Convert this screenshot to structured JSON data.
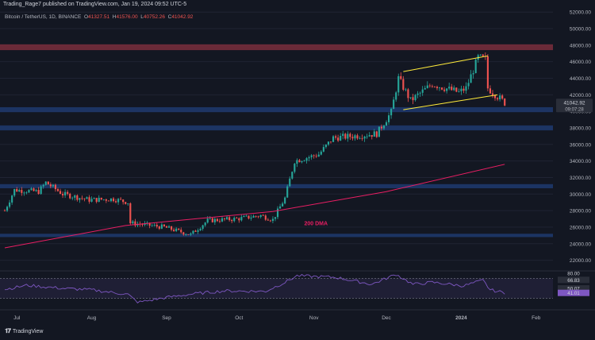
{
  "header": {
    "published_line": "Trading_Rage7 published on TradingView.com, Jan 19, 2024 09:52 UTC-5",
    "symbol": "Bitcoin / TetherUS, 1D, BINANCE",
    "ohlc": {
      "o_label": "O",
      "o": "41327.51",
      "h_label": "H",
      "h": "41576.00",
      "l_label": "L",
      "l": "40752.26",
      "c_label": "C",
      "c": "41042.92"
    }
  },
  "footer": {
    "brand": "TradingView"
  },
  "colors": {
    "background": "#131722",
    "up": "#26a69a",
    "down": "#ef5350",
    "support_zone": "#1e3a6e",
    "resistance_zone": "#7a2e3c",
    "channel": "#ffeb3b",
    "dma": "#e91e63",
    "rsi": "#7e57c2"
  },
  "chart_data": {
    "type": "candlestick",
    "price_axis": {
      "ticks": [
        "52000.00",
        "50000.00",
        "48000.00",
        "46000.00",
        "44000.00",
        "42000.00",
        "40000.00",
        "38000.00",
        "36000.00",
        "34000.00",
        "32000.00",
        "30000.00",
        "28000.00",
        "26000.00",
        "24000.00",
        "22000.00"
      ],
      "ylim": [
        21000,
        52500
      ]
    },
    "time_axis": {
      "ticks": [
        "Jul",
        "Aug",
        "Sep",
        "Oct",
        "Nov",
        "Dec",
        "2024",
        "Feb"
      ],
      "bold_tick": "2024"
    },
    "price_path": [
      [
        "2023-06-26",
        28000
      ],
      [
        "2023-06-30",
        30500
      ],
      [
        "2023-07-10",
        30300
      ],
      [
        "2023-07-13",
        31400
      ],
      [
        "2023-07-20",
        30000
      ],
      [
        "2023-07-31",
        29300
      ],
      [
        "2023-08-10",
        29400
      ],
      [
        "2023-08-16",
        29000
      ],
      [
        "2023-08-17",
        26500
      ],
      [
        "2023-08-31",
        26000
      ],
      [
        "2023-09-11",
        25100
      ],
      [
        "2023-09-18",
        26800
      ],
      [
        "2023-09-30",
        27000
      ],
      [
        "2023-10-10",
        27400
      ],
      [
        "2023-10-15",
        26900
      ],
      [
        "2023-10-20",
        29500
      ],
      [
        "2023-10-24",
        34000
      ],
      [
        "2023-11-03",
        34800
      ],
      [
        "2023-11-09",
        36800
      ],
      [
        "2023-11-17",
        37000
      ],
      [
        "2023-11-27",
        37300
      ],
      [
        "2023-12-03",
        39900
      ],
      [
        "2023-12-06",
        44000
      ],
      [
        "2023-12-11",
        41300
      ],
      [
        "2023-12-20",
        43300
      ],
      [
        "2023-12-31",
        42300
      ],
      [
        "2024-01-03",
        42800
      ],
      [
        "2024-01-08",
        46500
      ],
      [
        "2024-01-11",
        46300
      ],
      [
        "2024-01-12",
        42800
      ],
      [
        "2024-01-18",
        41300
      ],
      [
        "2024-01-19",
        41042
      ]
    ],
    "dma": {
      "label": "200 DMA",
      "points": [
        [
          "2023-06-26",
          23500
        ],
        [
          "2023-08-15",
          26200
        ],
        [
          "2023-10-15",
          27900
        ],
        [
          "2023-12-01",
          30300
        ],
        [
          "2024-01-19",
          33600
        ]
      ]
    },
    "zones": [
      {
        "kind": "resistance",
        "range": [
          47400,
          48100
        ]
      },
      {
        "kind": "support",
        "range": [
          39900,
          40500
        ]
      },
      {
        "kind": "support",
        "range": [
          37700,
          38300
        ]
      },
      {
        "kind": "support",
        "range": [
          30700,
          31200
        ]
      },
      {
        "kind": "support",
        "range": [
          24800,
          25200
        ]
      }
    ],
    "channel": {
      "upper": [
        [
          "2023-12-08",
          44800
        ],
        [
          "2024-01-12",
          46700
        ]
      ],
      "lower": [
        [
          "2023-12-08",
          40200
        ],
        [
          "2024-01-16",
          42000
        ]
      ]
    },
    "last_price": {
      "value": "41042.92",
      "countdown": "09:07:28"
    },
    "rsi": {
      "levels": [
        "80.00",
        "66.83",
        "50.07",
        "41.01"
      ],
      "range": [
        20,
        80
      ],
      "upper_band": 70,
      "lower_band": 30,
      "path": [
        [
          "2023-06-26",
          48
        ],
        [
          "2023-07-05",
          56
        ],
        [
          "2023-07-20",
          50
        ],
        [
          "2023-08-01",
          47
        ],
        [
          "2023-08-16",
          38
        ],
        [
          "2023-08-20",
          22
        ],
        [
          "2023-09-01",
          32
        ],
        [
          "2023-09-12",
          39
        ],
        [
          "2023-09-25",
          45
        ],
        [
          "2023-10-12",
          44
        ],
        [
          "2023-10-20",
          62
        ],
        [
          "2023-10-25",
          75
        ],
        [
          "2023-11-10",
          72
        ],
        [
          "2023-11-25",
          58
        ],
        [
          "2023-12-05",
          78
        ],
        [
          "2023-12-12",
          58
        ],
        [
          "2023-12-20",
          62
        ],
        [
          "2024-01-02",
          55
        ],
        [
          "2024-01-10",
          66
        ],
        [
          "2024-01-13",
          47
        ],
        [
          "2024-01-19",
          41
        ]
      ]
    }
  }
}
